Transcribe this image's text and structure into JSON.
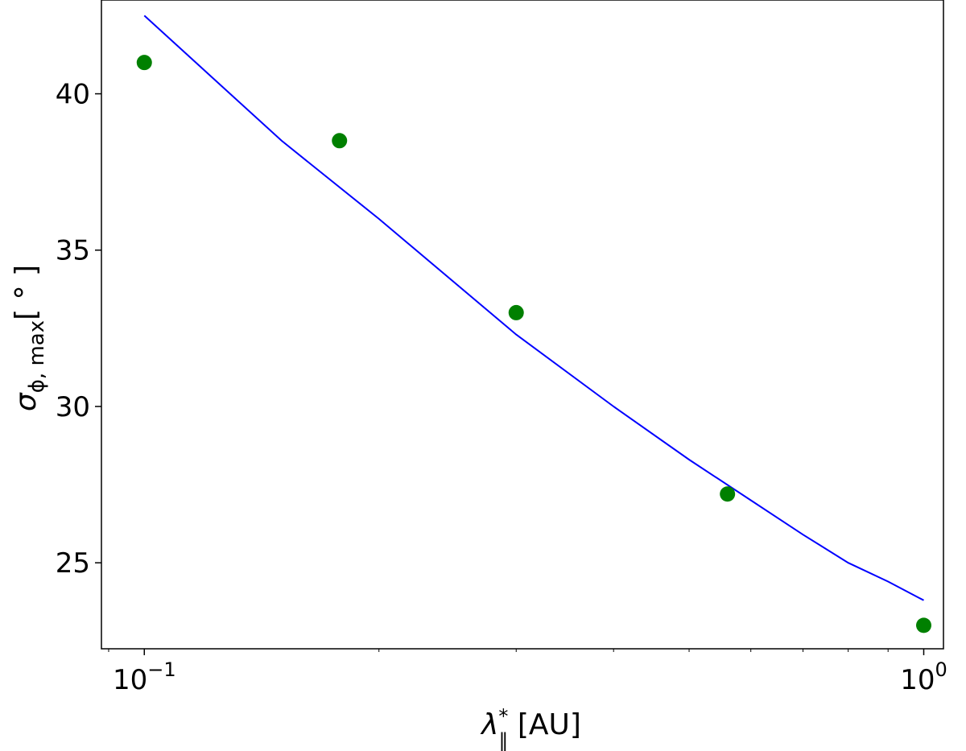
{
  "chart_data": {
    "type": "scatter",
    "title": "",
    "xlabel": {
      "symbol": "λ",
      "sup": "*",
      "sub": "∥",
      "unit": " [AU]"
    },
    "ylabel": {
      "symbol": "σ",
      "sub": "ϕ, max",
      "unit": "[ ° ]"
    },
    "xscale": "log",
    "xlim": [
      0.0881,
      1.06
    ],
    "ylim": [
      22.25,
      43.0
    ],
    "x_ticks": [
      {
        "value": 0.1,
        "base": "10",
        "exp": "−1"
      },
      {
        "value": 1.0,
        "base": "10",
        "exp": "0"
      }
    ],
    "y_ticks": [
      {
        "value": 25,
        "label": "25"
      },
      {
        "value": 30,
        "label": "30"
      },
      {
        "value": 35,
        "label": "35"
      },
      {
        "value": 40,
        "label": "40"
      }
    ],
    "grid": false,
    "series": [
      {
        "kind": "points",
        "color": "#008000",
        "x": [
          0.1,
          0.178,
          0.3,
          0.56,
          1.0
        ],
        "y": [
          41.0,
          38.5,
          33.0,
          27.2,
          23.0
        ]
      },
      {
        "kind": "line",
        "color": "#0000ff",
        "x": [
          0.1,
          0.15,
          0.2,
          0.3,
          0.4,
          0.5,
          0.6,
          0.7,
          0.8,
          0.9,
          1.0
        ],
        "y": [
          42.5,
          38.5,
          36.0,
          32.3,
          30.0,
          28.3,
          27.0,
          25.9,
          25.0,
          24.4,
          23.8
        ]
      }
    ]
  }
}
